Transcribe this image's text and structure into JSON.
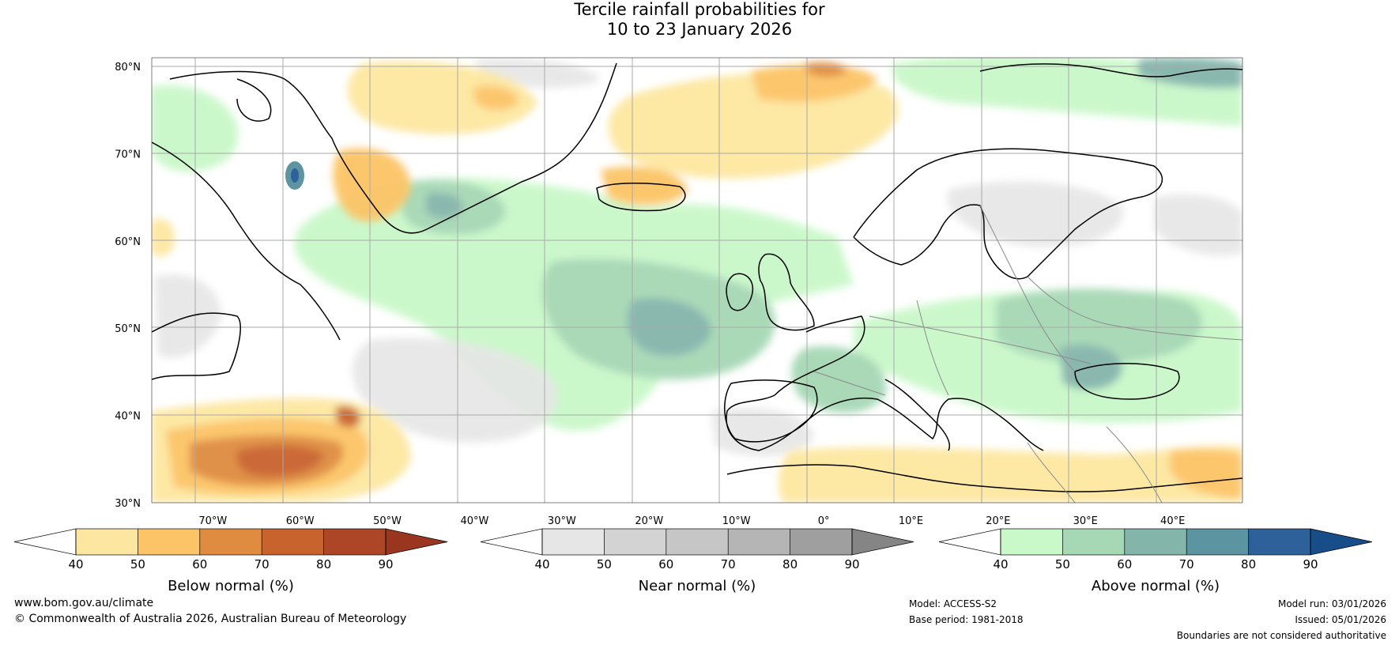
{
  "title": {
    "line1": "Tercile rainfall probabilities for",
    "line2": "10 to 23 January 2026"
  },
  "map": {
    "lat_labels": [
      "80°N",
      "70°N",
      "60°N",
      "50°N",
      "40°N",
      "30°N"
    ],
    "lon_labels": [
      "70°W",
      "60°W",
      "50°W",
      "40°W",
      "30°W",
      "20°W",
      "10°W",
      "0°",
      "10°E",
      "20°E",
      "30°E",
      "40°E"
    ],
    "extent": {
      "lon_min": -77,
      "lon_max": 48,
      "lat_min": 30,
      "lat_max": 81
    }
  },
  "colorbars": [
    {
      "label": "Below normal (%)",
      "ticks": [
        "40",
        "50",
        "60",
        "70",
        "80",
        "90"
      ],
      "colors": [
        "#ffffff",
        "#fde7a0",
        "#fcc466",
        "#df8c41",
        "#c9632d",
        "#ad4627",
        "#9a3520"
      ]
    },
    {
      "label": "Near normal (%)",
      "ticks": [
        "40",
        "50",
        "60",
        "70",
        "80",
        "90"
      ],
      "colors": [
        "#ffffff",
        "#e6e6e6",
        "#d3d3d3",
        "#c6c6c6",
        "#b5b5b5",
        "#9f9f9f",
        "#858585"
      ]
    },
    {
      "label": "Above normal (%)",
      "ticks": [
        "40",
        "50",
        "60",
        "70",
        "80",
        "90"
      ],
      "colors": [
        "#ffffff",
        "#c9f8c9",
        "#a6d8b5",
        "#84b5ab",
        "#5d94a1",
        "#2e6199",
        "#174e8a"
      ]
    }
  ],
  "footer": {
    "website": "www.bom.gov.au/climate",
    "copyright": "© Commonwealth of Australia 2026, Australian Bureau of Meteorology",
    "model": "Model: ACCESS-S2",
    "base_period": "Base period: 1981-2018",
    "model_run": "Model run: 03/01/2026",
    "issued": "Issued: 05/01/2026",
    "disclaimer": "Boundaries are not considered authoritative"
  }
}
